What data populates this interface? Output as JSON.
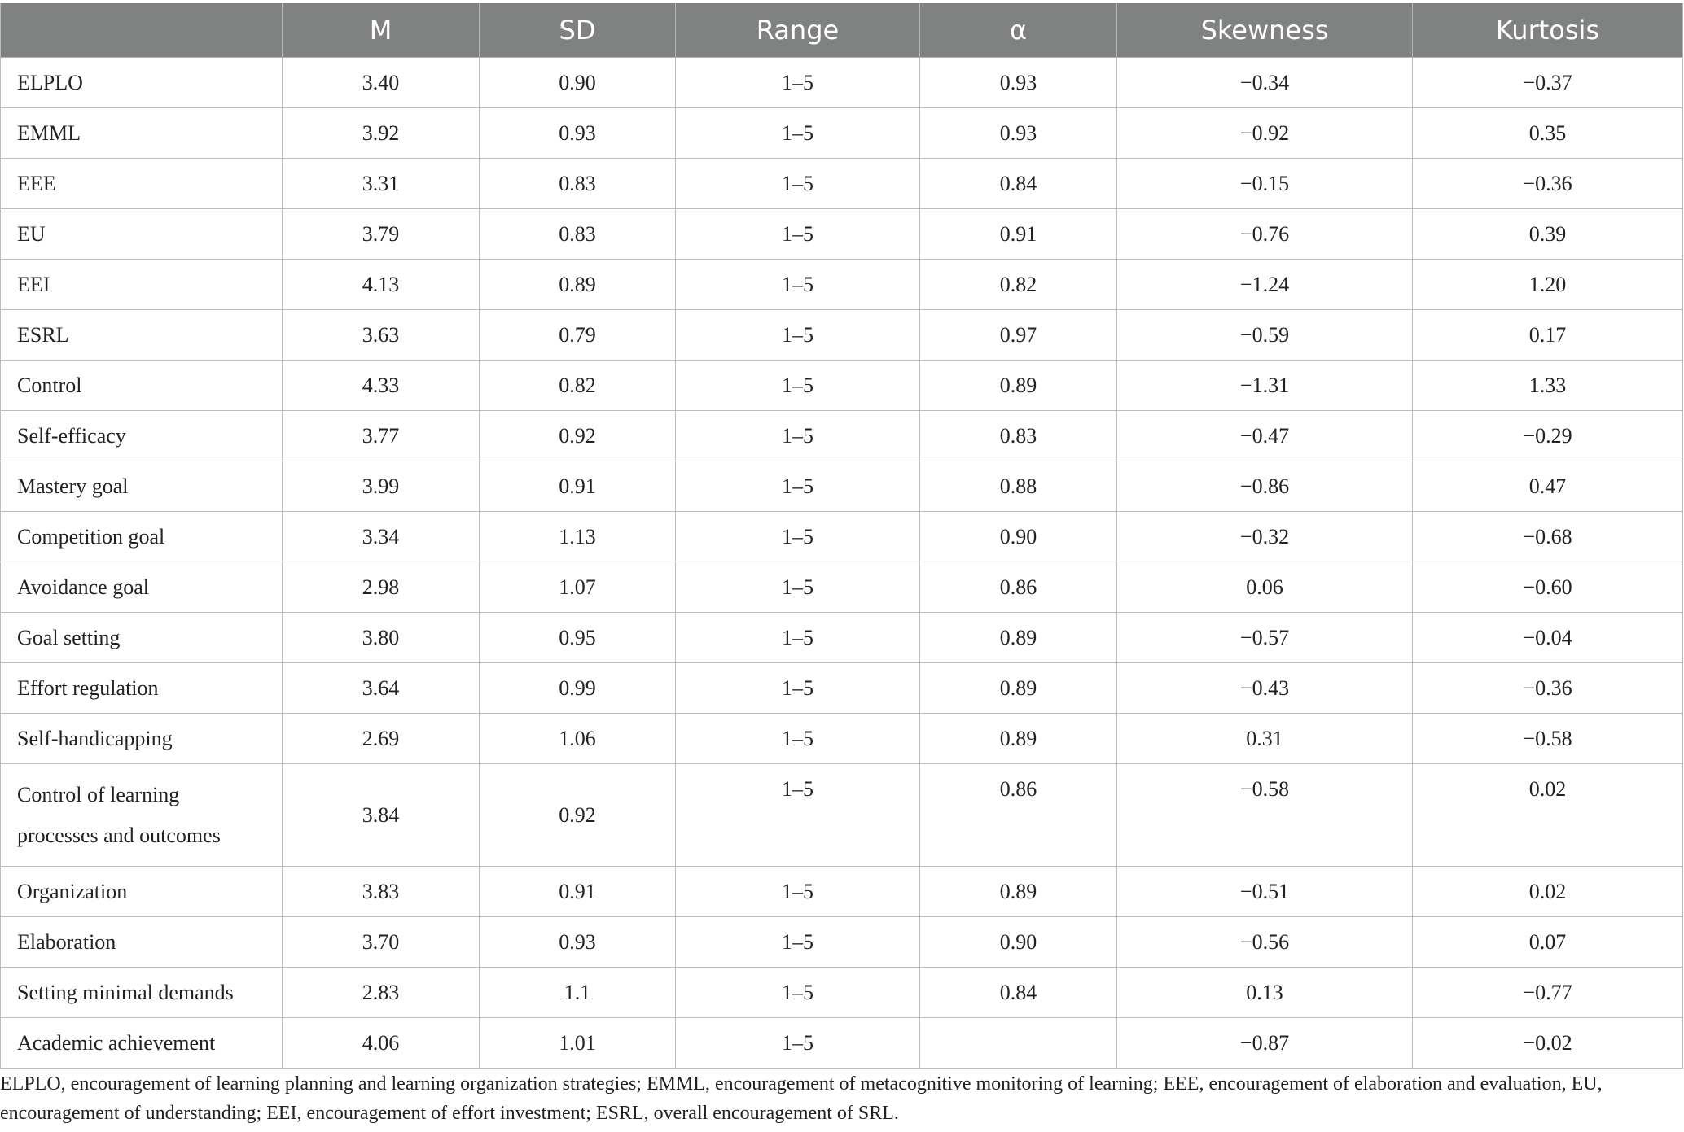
{
  "table": {
    "headers": [
      "",
      "M",
      "SD",
      "Range",
      "α",
      "Skewness",
      "Kurtosis"
    ],
    "rows": [
      {
        "label": "ELPLO",
        "m": "3.40",
        "sd": "0.90",
        "range": "1–5",
        "alpha": "0.93",
        "skew": "−0.34",
        "kurt": "−0.37"
      },
      {
        "label": "EMML",
        "m": "3.92",
        "sd": "0.93",
        "range": "1–5",
        "alpha": "0.93",
        "skew": "−0.92",
        "kurt": "0.35"
      },
      {
        "label": "EEE",
        "m": "3.31",
        "sd": "0.83",
        "range": "1–5",
        "alpha": "0.84",
        "skew": "−0.15",
        "kurt": "−0.36"
      },
      {
        "label": "EU",
        "m": "3.79",
        "sd": "0.83",
        "range": "1–5",
        "alpha": "0.91",
        "skew": "−0.76",
        "kurt": "0.39"
      },
      {
        "label": "EEI",
        "m": "4.13",
        "sd": "0.89",
        "range": "1–5",
        "alpha": "0.82",
        "skew": "−1.24",
        "kurt": "1.20"
      },
      {
        "label": "ESRL",
        "m": "3.63",
        "sd": "0.79",
        "range": "1–5",
        "alpha": "0.97",
        "skew": "−0.59",
        "kurt": "0.17"
      },
      {
        "label": "Control",
        "m": "4.33",
        "sd": "0.82",
        "range": "1–5",
        "alpha": "0.89",
        "skew": "−1.31",
        "kurt": "1.33"
      },
      {
        "label": "Self-efficacy",
        "m": "3.77",
        "sd": "0.92",
        "range": "1–5",
        "alpha": "0.83",
        "skew": "−0.47",
        "kurt": "−0.29"
      },
      {
        "label": "Mastery goal",
        "m": "3.99",
        "sd": "0.91",
        "range": "1–5",
        "alpha": "0.88",
        "skew": "−0.86",
        "kurt": "0.47"
      },
      {
        "label": "Competition goal",
        "m": "3.34",
        "sd": "1.13",
        "range": "1–5",
        "alpha": "0.90",
        "skew": "−0.32",
        "kurt": "−0.68"
      },
      {
        "label": "Avoidance goal",
        "m": "2.98",
        "sd": "1.07",
        "range": "1–5",
        "alpha": "0.86",
        "skew": "0.06",
        "kurt": "−0.60"
      },
      {
        "label": "Goal setting",
        "m": "3.80",
        "sd": "0.95",
        "range": "1–5",
        "alpha": "0.89",
        "skew": "−0.57",
        "kurt": "−0.04"
      },
      {
        "label": "Effort regulation",
        "m": "3.64",
        "sd": "0.99",
        "range": "1–5",
        "alpha": "0.89",
        "skew": "−0.43",
        "kurt": "−0.36"
      },
      {
        "label": "Self-handicapping",
        "m": "2.69",
        "sd": "1.06",
        "range": "1–5",
        "alpha": "0.89",
        "skew": "0.31",
        "kurt": "−0.58"
      },
      {
        "label_line1": "Control of learning",
        "label_line2": "processes and outcomes",
        "m": "3.84",
        "sd": "0.92",
        "range": "1–5",
        "alpha": "0.86",
        "skew": "−0.58",
        "kurt": "0.02"
      },
      {
        "label": "Organization",
        "m": "3.83",
        "sd": "0.91",
        "range": "1–5",
        "alpha": "0.89",
        "skew": "−0.51",
        "kurt": "0.02"
      },
      {
        "label": "Elaboration",
        "m": "3.70",
        "sd": "0.93",
        "range": "1–5",
        "alpha": "0.90",
        "skew": "−0.56",
        "kurt": "0.07"
      },
      {
        "label": "Setting minimal demands",
        "m": "2.83",
        "sd": "1.1",
        "range": "1–5",
        "alpha": "0.84",
        "skew": "0.13",
        "kurt": "−0.77"
      },
      {
        "label": "Academic achievement",
        "m": "4.06",
        "sd": "1.01",
        "range": "1–5",
        "alpha": "",
        "skew": "−0.87",
        "kurt": "−0.02"
      }
    ]
  },
  "footnote": "ELPLO, encouragement of learning planning and learning organization strategies; EMML, encouragement of metacognitive monitoring of learning; EEE, encouragement of elaboration and evaluation, EU, encouragement of understanding; EEI, encouragement of effort investment; ESRL, overall encouragement of SRL."
}
